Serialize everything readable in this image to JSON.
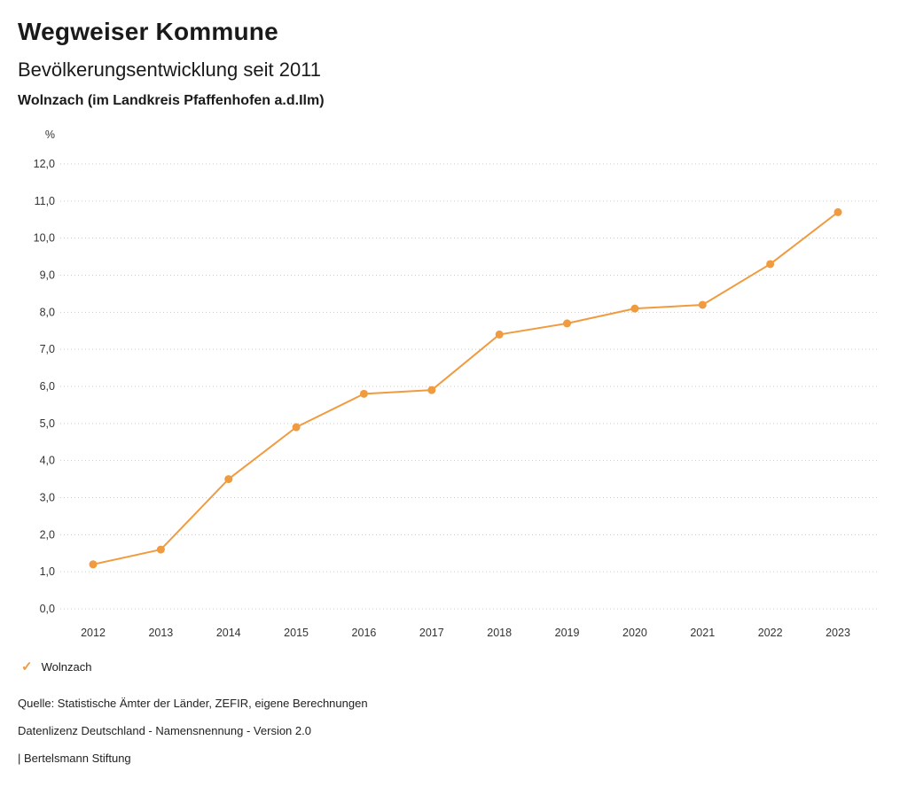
{
  "header": {
    "title": "Wegweiser Kommune",
    "subtitle": "Bevölkerungsentwicklung seit 2011",
    "region": "Wolnzach (im Landkreis Pfaffenhofen a.d.Ilm)"
  },
  "chart_data": {
    "type": "line",
    "title": "Bevölkerungsentwicklung seit 2011",
    "unit_label": "%",
    "x": [
      2012,
      2013,
      2014,
      2015,
      2016,
      2017,
      2018,
      2019,
      2020,
      2021,
      2022,
      2023
    ],
    "series": [
      {
        "name": "Wolnzach",
        "color": "#F09B3F",
        "values": [
          1.2,
          1.6,
          3.5,
          4.9,
          5.8,
          5.9,
          7.4,
          7.7,
          8.1,
          8.2,
          9.3,
          10.7
        ]
      }
    ],
    "ylim": [
      0,
      12
    ],
    "y_tick_step": 1,
    "y_tick_labels": [
      "0,0",
      "1,0",
      "2,0",
      "3,0",
      "4,0",
      "5,0",
      "6,0",
      "7,0",
      "8,0",
      "9,0",
      "10,0",
      "11,0",
      "12,0"
    ],
    "grid": "dotted-horizontal",
    "grid_color": "#c9c9c9",
    "legend_position": "bottom-left"
  },
  "legend": {
    "items": [
      {
        "label": "Wolnzach",
        "color": "#F09B3F"
      }
    ]
  },
  "footer": {
    "source": "Quelle: Statistische Ämter der Länder, ZEFIR, eigene Berechnungen",
    "license": "Datenlizenz Deutschland - Namensnennung - Version 2.0",
    "attribution": "| Bertelsmann Stiftung"
  }
}
